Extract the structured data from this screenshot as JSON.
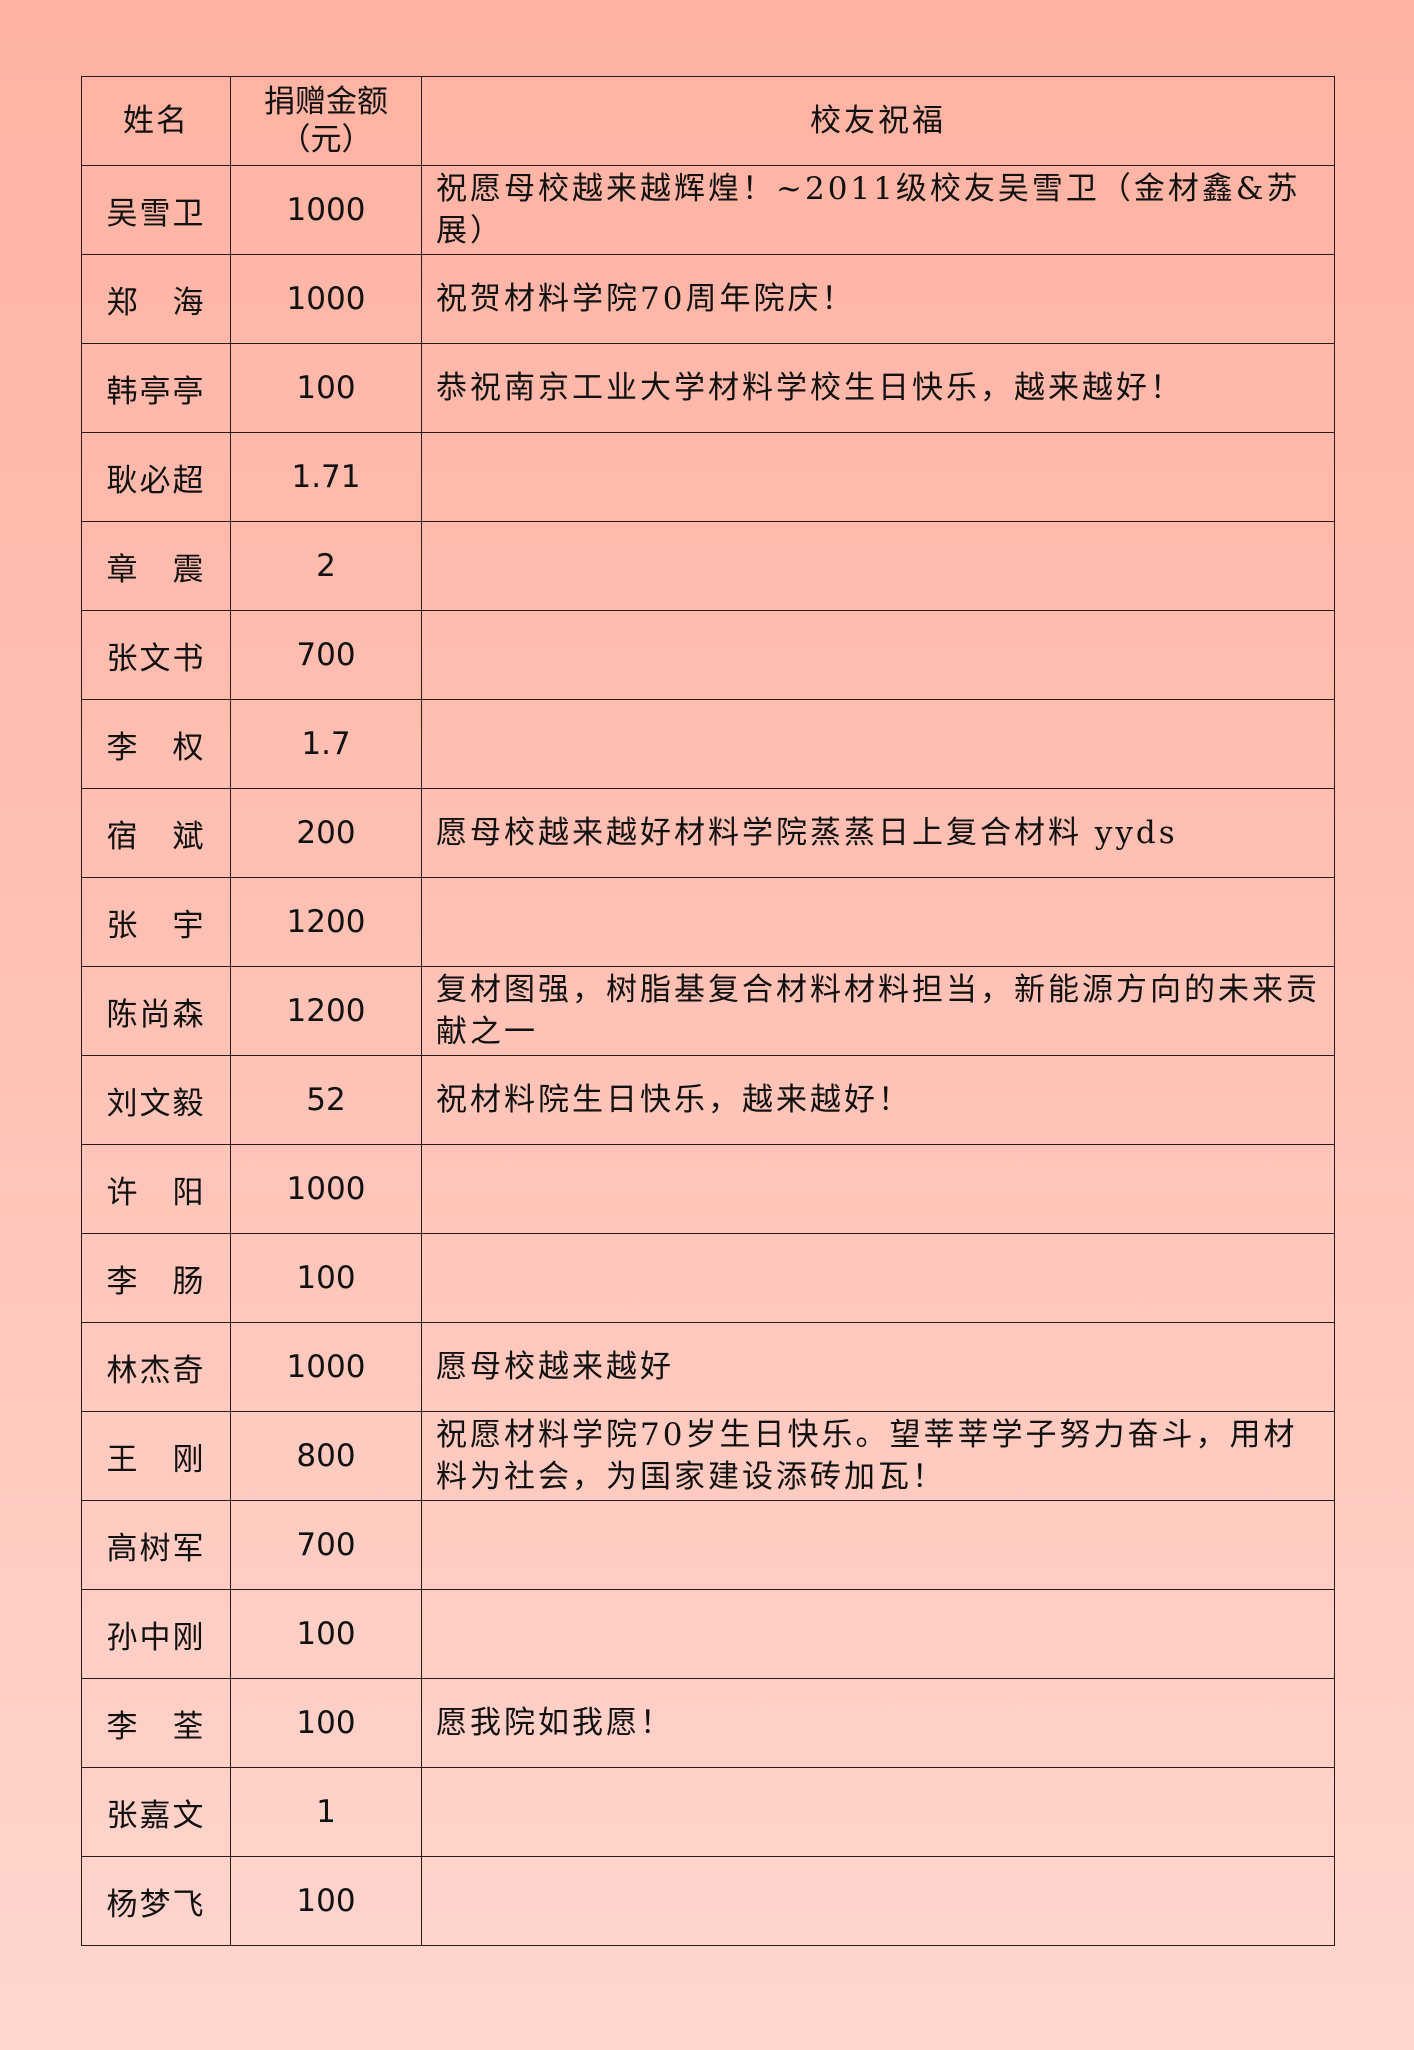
{
  "header": {
    "name": "姓名",
    "amount": "捐赠金额（元）",
    "blessing": "校友祝福"
  },
  "rows": [
    {
      "name": "吴雪卫",
      "amount": "1000",
      "blessing": "祝愿母校越来越辉煌！~2011级校友吴雪卫（金材鑫&苏展）"
    },
    {
      "name": "郑　海",
      "amount": "1000",
      "blessing": "祝贺材料学院70周年院庆！"
    },
    {
      "name": "韩亭亭",
      "amount": "100",
      "blessing": "恭祝南京工业大学材料学校生日快乐，越来越好！"
    },
    {
      "name": "耿必超",
      "amount": "1.71",
      "blessing": ""
    },
    {
      "name": "章　震",
      "amount": "2",
      "blessing": ""
    },
    {
      "name": "张文书",
      "amount": "700",
      "blessing": ""
    },
    {
      "name": "李　权",
      "amount": "1.7",
      "blessing": ""
    },
    {
      "name": "宿　斌",
      "amount": "200",
      "blessing": "愿母校越来越好材料学院蒸蒸日上复合材料 yyds"
    },
    {
      "name": "张　宇",
      "amount": "1200",
      "blessing": ""
    },
    {
      "name": "陈尚森",
      "amount": "1200",
      "blessing": "复材图强，树脂基复合材料材料担当，新能源方向的未来贡献之一"
    },
    {
      "name": "刘文毅",
      "amount": "52",
      "blessing": "祝材料院生日快乐，越来越好！"
    },
    {
      "name": "许　阳",
      "amount": "1000",
      "blessing": ""
    },
    {
      "name": "李　肠",
      "amount": "100",
      "blessing": ""
    },
    {
      "name": "林杰奇",
      "amount": "1000",
      "blessing": "愿母校越来越好"
    },
    {
      "name": "王　刚",
      "amount": "800",
      "blessing": "祝愿材料学院70岁生日快乐。望莘莘学子努力奋斗，用材料为社会，为国家建设添砖加瓦！"
    },
    {
      "name": "高树军",
      "amount": "700",
      "blessing": ""
    },
    {
      "name": "孙中刚",
      "amount": "100",
      "blessing": ""
    },
    {
      "name": "李　荃",
      "amount": "100",
      "blessing": "愿我院如我愿！"
    },
    {
      "name": "张嘉文",
      "amount": "1",
      "blessing": ""
    },
    {
      "name": "杨梦飞",
      "amount": "100",
      "blessing": ""
    }
  ]
}
